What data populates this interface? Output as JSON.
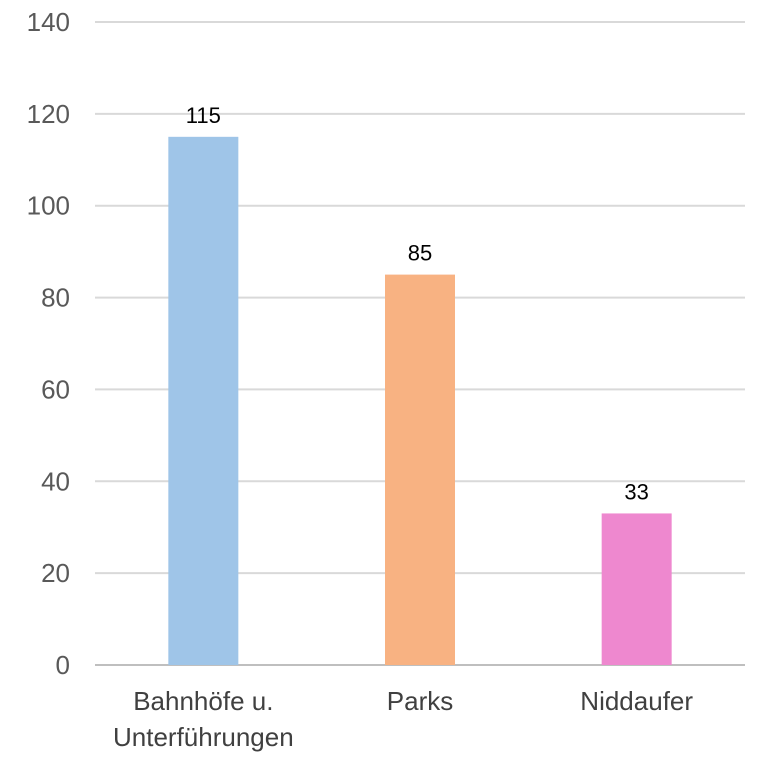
{
  "chart_data": {
    "type": "bar",
    "categories": [
      [
        "Bahnhöfe u.",
        "Unterführungen"
      ],
      [
        "Parks"
      ],
      [
        "Niddaufer"
      ]
    ],
    "values": [
      115,
      85,
      33
    ],
    "colors": [
      "#9fc5e8",
      "#f8b282",
      "#ee88cf"
    ],
    "ylim": [
      0,
      140
    ],
    "yticks": [
      0,
      20,
      40,
      60,
      80,
      100,
      120,
      140
    ],
    "grid": true,
    "title": "",
    "xlabel": "",
    "ylabel": ""
  }
}
